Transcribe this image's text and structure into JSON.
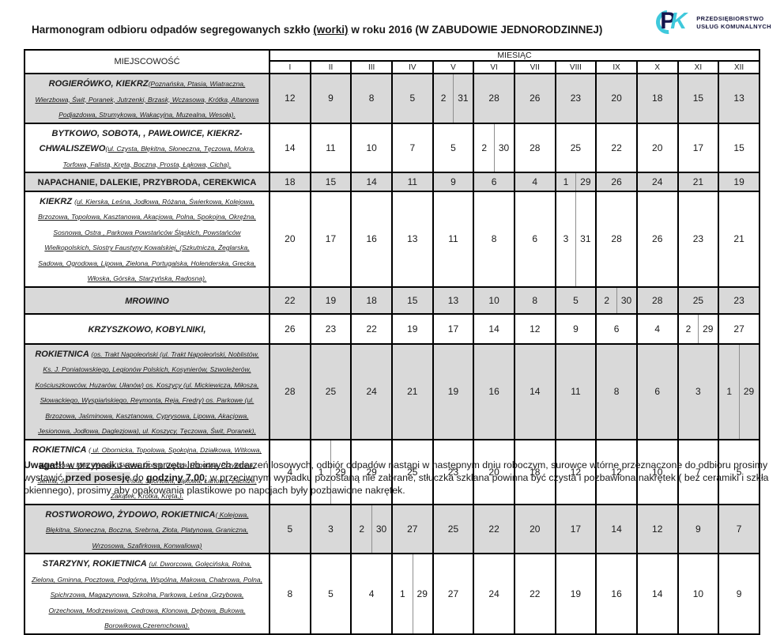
{
  "page": {
    "title_prefix": "Harmonogram odbioru odpadów segregowanych szkło ",
    "title_worki": "(worki)",
    "title_suffix": " w roku 2016 (W ZABUDOWIE JEDNORODZINNEJ)"
  },
  "logo": {
    "mark_p": "P",
    "mark_k": "K",
    "line1": "PRZEDSIĘBIORSTWO",
    "line2": "USŁUG KOMUNALNYCH",
    "color_dark": "#15154d",
    "color_cyan": "#3fc9dc"
  },
  "table": {
    "col_locality": "MIEJSCOWOŚĆ",
    "col_month_group": "MIESIĄC",
    "months": [
      "I",
      "II",
      "III",
      "IV",
      "V",
      "VI",
      "VII",
      "VIII",
      "IX",
      "X",
      "XI",
      "XII"
    ],
    "row_shade_color": "#d9d9d9",
    "rows": [
      {
        "name": "ROGIERÓWKO, KIEKRZ",
        "name_italic": true,
        "streets": "(Poznańska,  Ptasia, Wiatraczna, Wierzbowa, Świt, Poranek, Jutrzenki, Brzask, Wczasowa, Krótka, Altanowa Podjazdowa, Strumykowa, Wakacyjna, Muzealna, Wesoła).",
        "shaded": true,
        "values": [
          "12",
          "9",
          "8",
          "5",
          [
            "2",
            "31"
          ],
          "28",
          "26",
          "23",
          "20",
          "18",
          "15",
          "13"
        ]
      },
      {
        "name": "BYTKOWO, SOBOTA, , PAWŁOWICE, KIEKRZ-CHWALISZEWO",
        "name_italic": true,
        "streets": "(ul. Czysta, Błękitna, Słoneczna, Tęczowa, Mokra, Torfowa, Falista, Kręta, Boczna, Prosta, Łąkowa, Cicha).",
        "shaded": false,
        "values": [
          "14",
          "11",
          "10",
          "7",
          "5",
          [
            "2",
            "30"
          ],
          "28",
          "25",
          "22",
          "20",
          "17",
          "15"
        ]
      },
      {
        "name": "NAPACHANIE, DALEKIE, PRZYBRODA, CEREKWICA",
        "name_italic": false,
        "streets": "",
        "shaded": true,
        "values": [
          "18",
          "15",
          "14",
          "11",
          "9",
          "6",
          "4",
          [
            "1",
            "29"
          ],
          "26",
          "24",
          "21",
          "19"
        ]
      },
      {
        "name": "KIEKRZ ",
        "name_italic": true,
        "streets": "(ul. Kierska, Leśna, Jodłowa, Różana, Świerkowa, Kolejowa, Brzozowa, Topolowa, Kasztanowa, Akacjowa, Polna, Spokojna, Okrężna, Sosnowa, Ostra , Parkowa Powstańców Śląskich, Powstańców Wielkopolskich, Siostry Faustyny Kowalskiej, (Szkutnicza, Żeglarska, Sadowa, Ogrodowa, Lipowa, Zielona, Portugalska, Holenderska, Grecka, Włoska, Górska, Starzyńska, Radosna).",
        "shaded": false,
        "values": [
          "20",
          "17",
          "16",
          "13",
          "11",
          "8",
          "6",
          [
            "3",
            "31"
          ],
          "28",
          "26",
          "23",
          "21"
        ]
      },
      {
        "name": "MROWINO",
        "name_italic": true,
        "streets": "",
        "shaded": true,
        "values": [
          "22",
          "19",
          "18",
          "15",
          "13",
          "10",
          "8",
          "5",
          [
            "2",
            "30"
          ],
          "28",
          "25",
          "23"
        ]
      },
      {
        "name": "KRZYSZKOWO, KOBYLNIKI,",
        "name_italic": true,
        "streets": "",
        "shaded": false,
        "values": [
          "26",
          "23",
          "22",
          "19",
          "17",
          "14",
          "12",
          "9",
          "6",
          "4",
          [
            "2",
            "29"
          ],
          "27"
        ]
      },
      {
        "name": "ROKIETNICA  ",
        "name_italic": true,
        "streets": "(os. Trakt Napoleoński (ul. Trakt Napoleoński, Noblistów,   Ks. J. Poniatowskiego, Legionów Polskich, Kosynierów, Szwoleżerów, Kościuszkowców, Huzarów, Ułanów)   os. Koszycy (ul. Mickiewicza, Miłosza, Słowackiego, Wyspiańskiego, Reymonta, Reja, Fredry) os. Parkowe (ul. Brzozowa, Jaśminowa, Kasztanowa, Cyprysowa, Lipowa, Akacjowa, Jesionowa, Jodłowa, Daglezjowa), ul. Koszycy, Tęczowa, Świt, Poranek),",
        "shaded": true,
        "values": [
          "28",
          "25",
          "24",
          "21",
          "19",
          "16",
          "14",
          "11",
          "8",
          "6",
          "3",
          [
            "1",
            "29"
          ]
        ]
      },
      {
        "name": "ROKIETNICA ",
        "name_italic": true,
        "streets": "( ul. Obornicka, Topolowa, Spokojna, Działkowa, Witkowa, Wierzbowa, Miła, Wesoła, Sielska, Dobra, Urocza, Pogodna, Przyjemna, Senna, Jasna, Cicha, Szamotulska, Sportowa, Łąkowa, Łanowa, Zacisze, Zakątek, Krótka, Kręta,).",
        "shaded": false,
        "values": [
          "4",
          [
            "1",
            "29"
          ],
          "29",
          "25",
          "23",
          "20",
          "18",
          "12",
          "12",
          "10",
          "7",
          "5"
        ]
      },
      {
        "name": "ROSTWOROWO, ŻYDOWO, ROKIETNICA",
        "name_italic": true,
        "streets": "( Kolejowa, Błękitna, Słoneczna, Boczna, Srebrna, Złota, Platynowa, Graniczna, Wrzosowa, Szafirkowa, Konwaliowa)",
        "shaded": true,
        "values": [
          "5",
          "3",
          [
            "2",
            "30"
          ],
          "27",
          "25",
          "22",
          "20",
          "17",
          "14",
          "12",
          "9",
          "7"
        ]
      },
      {
        "name": "STARZYNY, ROKIETNICA ",
        "name_italic": true,
        "streets": "(ul. Dworcowa, Golęcińska, Rolna, Zielona, Gminna, Pocztowa, Podgórna, Wspólna, Makowa, Chabrowa, Polna, Spichrzowa, Magazynowa, Szkolna, Parkowa, Leśna ,Grzybowa, Orzechowa, Modrzewiowa, Cedrowa, Klonowa, Dębowa, Bukowa, Borowikowa,Czeremchowa).",
        "shaded": false,
        "values": [
          "8",
          "5",
          "4",
          [
            "1",
            "29"
          ],
          "27",
          "24",
          "22",
          "19",
          "16",
          "14",
          "10",
          "9"
        ]
      }
    ]
  },
  "footer": {
    "segments": [
      {
        "text": "Uwaga!!!",
        "bold": true,
        "highlight": false
      },
      {
        "text": " w przypadku awarii sprzętu lub innych zdarzeń losowych, odbiór odpadów nastąpi w następnym dniu roboczym, surowce wtórne przeznaczone do odbioru prosimy wystawić ",
        "bold": false,
        "highlight": false
      },
      {
        "text": "przed posesję",
        "bold": true,
        "highlight": true
      },
      {
        "text": "  do ",
        "bold": false,
        "highlight": false
      },
      {
        "text": "godziny 7.00",
        "bold": true,
        "highlight": false
      },
      {
        "text": "; w przeciwnym wypadku pozostaną nie zabrane, stłuczka szklana powinna być czysta i pozbawiona nakrętek   ( bez ceramiki i szkła okiennego), prosimy aby opakowania plastikowe po napojach były pozbawione nakrętek.",
        "bold": false,
        "highlight": false
      }
    ]
  }
}
